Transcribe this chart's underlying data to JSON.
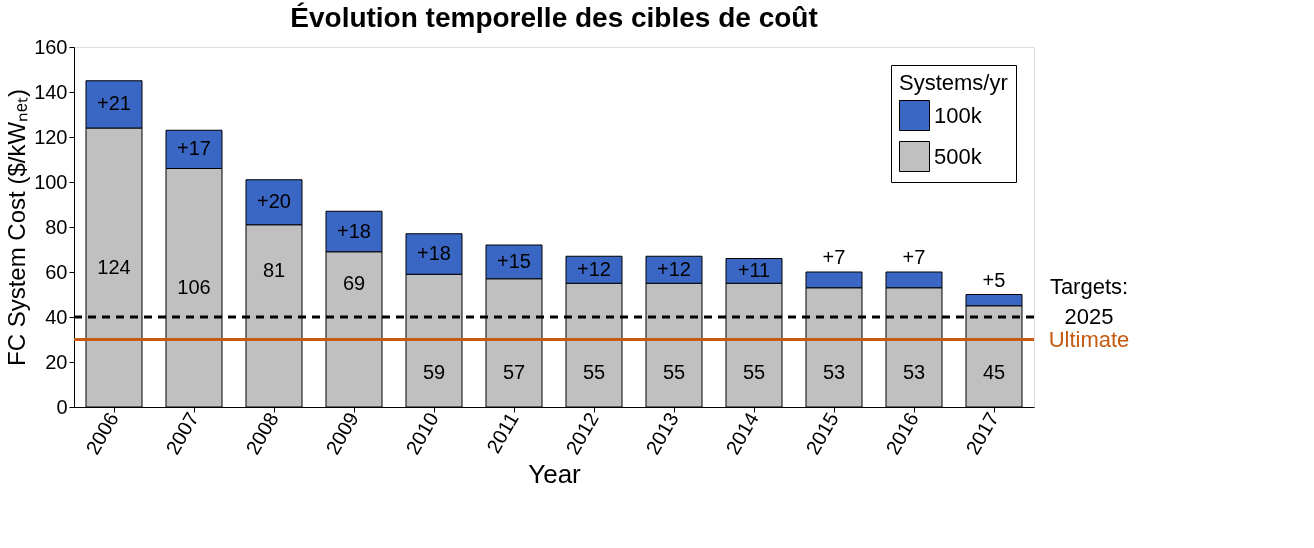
{
  "chart_data": {
    "type": "bar",
    "title": "Évolution temporelle des cibles de coût",
    "xlabel": "Year",
    "ylabel": "FC System Cost ($/kWₙₑₜ)",
    "legend_title": "Systems/yr",
    "stacked": true,
    "legend": "top right",
    "grid": false,
    "categories": [
      "2006",
      "2007",
      "2008",
      "2009",
      "2010",
      "2011",
      "2012",
      "2013",
      "2014",
      "2015",
      "2016",
      "2017"
    ],
    "series": [
      {
        "name": "500k",
        "color": "#c0c0c0",
        "values": [
          124,
          106,
          81,
          69,
          59,
          57,
          55,
          55,
          55,
          53,
          53,
          45
        ],
        "value_labels": [
          "124",
          "106",
          "81",
          "69",
          "59",
          "57",
          "55",
          "55",
          "55",
          "53",
          "53",
          "45"
        ]
      },
      {
        "name": "100k",
        "color": "#3a66c4",
        "values": [
          21,
          17,
          20,
          18,
          18,
          15,
          12,
          12,
          11,
          7,
          7,
          5
        ],
        "value_labels": [
          "+21",
          "+17",
          "+20",
          "+18",
          "+18",
          "+15",
          "+12",
          "+12",
          "+11",
          "+7",
          "+7",
          "+5"
        ]
      }
    ],
    "ylim": [
      0,
      160
    ],
    "yticks": [
      0,
      20,
      40,
      60,
      80,
      100,
      120,
      140,
      160
    ],
    "ref_lines": [
      {
        "axis": "y",
        "value": 40,
        "color": "#000000",
        "line_style": "dashed"
      },
      {
        "axis": "y",
        "value": 30,
        "label": "Ultimate",
        "color": "#c55a11",
        "line_style": "solid"
      }
    ],
    "annotations": [
      "Targets:",
      "2025"
    ]
  }
}
